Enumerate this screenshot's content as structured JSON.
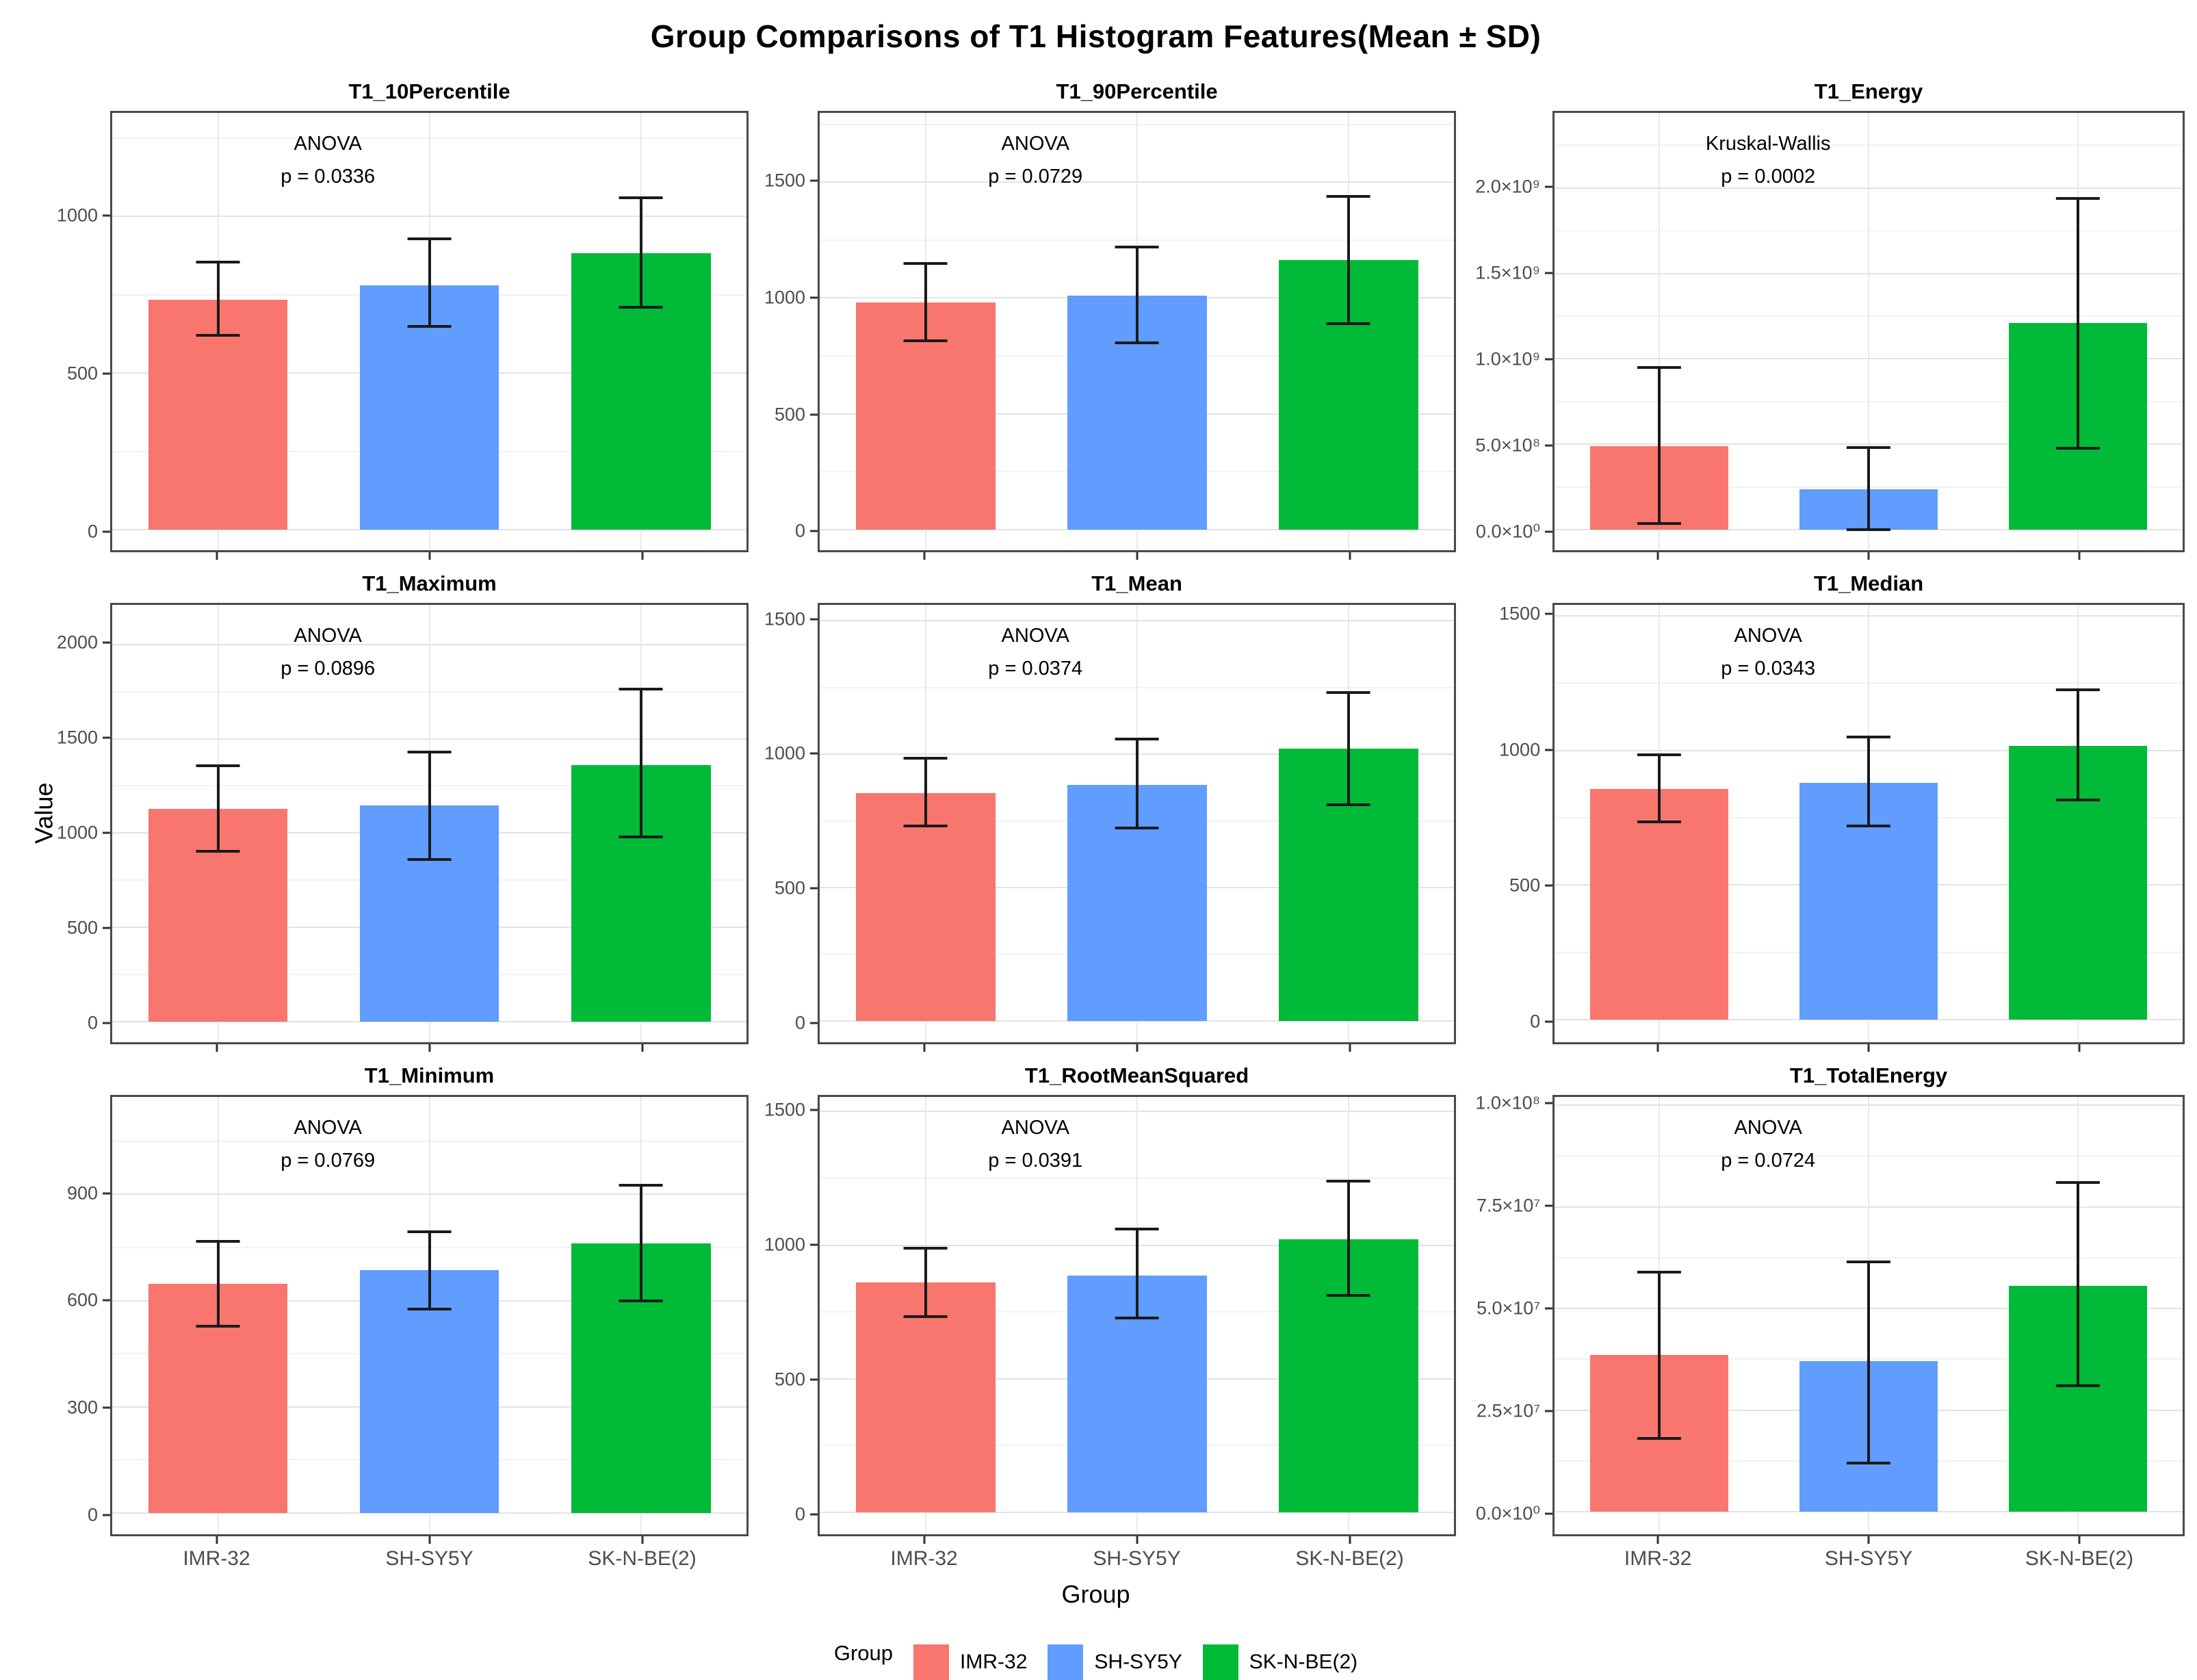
{
  "chart_data": {
    "type": "bar",
    "title": "Group Comparisons of T1 Histogram Features(Mean ± SD)",
    "ylabel": "Value",
    "xlabel": "Group",
    "grid": "on",
    "legend_position": "bottom",
    "legend": {
      "title": "Group",
      "entries": [
        {
          "label": "IMR-32",
          "color": "#F8766D"
        },
        {
          "label": "SH-SY5Y",
          "color": "#619CFF"
        },
        {
          "label": "SK-N-BE(2)",
          "color": "#00BA38"
        }
      ]
    },
    "categories": [
      "IMR-32",
      "SH-SY5Y",
      "SK-N-BE(2)"
    ],
    "error_bar_meaning": "Mean ± SD",
    "panels": [
      {
        "title": "T1_10Percentile",
        "test": "ANOVA",
        "p_label": "p = 0.0336",
        "ymin": -65,
        "ymax": 1330,
        "ticks": [
          {
            "value": 0,
            "label": "0"
          },
          {
            "value": 500,
            "label": "500"
          },
          {
            "value": 1000,
            "label": "1000"
          }
        ],
        "bars": [
          {
            "group": "IMR-32",
            "mean": 735,
            "lo": 620,
            "hi": 855
          },
          {
            "group": "SH-SY5Y",
            "mean": 780,
            "lo": 648,
            "hi": 928
          },
          {
            "group": "SK-N-BE(2)",
            "mean": 882,
            "lo": 710,
            "hi": 1060
          }
        ]
      },
      {
        "title": "T1_90Percentile",
        "test": "ANOVA",
        "p_label": "p = 0.0729",
        "ymin": -90,
        "ymax": 1800,
        "ticks": [
          {
            "value": 0,
            "label": "0"
          },
          {
            "value": 500,
            "label": "500"
          },
          {
            "value": 1000,
            "label": "1000"
          },
          {
            "value": 1500,
            "label": "1500"
          }
        ],
        "bars": [
          {
            "group": "IMR-32",
            "mean": 980,
            "lo": 816,
            "hi": 1148
          },
          {
            "group": "SH-SY5Y",
            "mean": 1010,
            "lo": 806,
            "hi": 1220
          },
          {
            "group": "SK-N-BE(2)",
            "mean": 1163,
            "lo": 890,
            "hi": 1440
          }
        ]
      },
      {
        "title": "T1_Energy",
        "test": "Kruskal-Wallis",
        "p_label": "p = 0.0002",
        "ymin": -120000000,
        "ymax": 2440000000,
        "ticks": [
          {
            "value": 0,
            "label": "0.0×10⁰"
          },
          {
            "value": 500000000,
            "label": "5.0×10⁸"
          },
          {
            "value": 1000000000,
            "label": "1.0×10⁹"
          },
          {
            "value": 1500000000,
            "label": "1.5×10⁹"
          },
          {
            "value": 2000000000,
            "label": "2.0×10⁹"
          }
        ],
        "bars": [
          {
            "group": "IMR-32",
            "mean": 490000000,
            "lo": 35000000,
            "hi": 950000000
          },
          {
            "group": "SH-SY5Y",
            "mean": 235000000,
            "lo": 0,
            "hi": 480000000
          },
          {
            "group": "SK-N-BE(2)",
            "mean": 1210000000,
            "lo": 475000000,
            "hi": 1940000000
          }
        ]
      },
      {
        "title": "T1_Maximum",
        "test": "ANOVA",
        "p_label": "p = 0.0896",
        "ymin": -110,
        "ymax": 2210,
        "ticks": [
          {
            "value": 0,
            "label": "0"
          },
          {
            "value": 500,
            "label": "500"
          },
          {
            "value": 1000,
            "label": "1000"
          },
          {
            "value": 1500,
            "label": "1500"
          },
          {
            "value": 2000,
            "label": "2000"
          }
        ],
        "bars": [
          {
            "group": "IMR-32",
            "mean": 1128,
            "lo": 903,
            "hi": 1356
          },
          {
            "group": "SH-SY5Y",
            "mean": 1145,
            "lo": 860,
            "hi": 1428
          },
          {
            "group": "SK-N-BE(2)",
            "mean": 1362,
            "lo": 978,
            "hi": 1762
          }
        ]
      },
      {
        "title": "T1_Mean",
        "test": "ANOVA",
        "p_label": "p = 0.0374",
        "ymin": -80,
        "ymax": 1560,
        "ticks": [
          {
            "value": 0,
            "label": "0"
          },
          {
            "value": 500,
            "label": "500"
          },
          {
            "value": 1000,
            "label": "1000"
          },
          {
            "value": 1500,
            "label": "1500"
          }
        ],
        "bars": [
          {
            "group": "IMR-32",
            "mean": 854,
            "lo": 730,
            "hi": 985
          },
          {
            "group": "SH-SY5Y",
            "mean": 884,
            "lo": 724,
            "hi": 1056
          },
          {
            "group": "SK-N-BE(2)",
            "mean": 1020,
            "lo": 810,
            "hi": 1232
          }
        ]
      },
      {
        "title": "T1_Median",
        "test": "ANOVA",
        "p_label": "p = 0.0343",
        "ymin": -83,
        "ymax": 1540,
        "ticks": [
          {
            "value": 0,
            "label": "0"
          },
          {
            "value": 500,
            "label": "500"
          },
          {
            "value": 1000,
            "label": "1000"
          },
          {
            "value": 1500,
            "label": "1500"
          }
        ],
        "bars": [
          {
            "group": "IMR-32",
            "mean": 858,
            "lo": 734,
            "hi": 983
          },
          {
            "group": "SH-SY5Y",
            "mean": 879,
            "lo": 719,
            "hi": 1050
          },
          {
            "group": "SK-N-BE(2)",
            "mean": 1017,
            "lo": 816,
            "hi": 1224
          }
        ]
      },
      {
        "title": "T1_Minimum",
        "test": "ANOVA",
        "p_label": "p = 0.0769",
        "ymin": -60,
        "ymax": 1175,
        "ticks": [
          {
            "value": 0,
            "label": "0"
          },
          {
            "value": 300,
            "label": "300"
          },
          {
            "value": 600,
            "label": "600"
          },
          {
            "value": 900,
            "label": "900"
          }
        ],
        "bars": [
          {
            "group": "IMR-32",
            "mean": 648,
            "lo": 528,
            "hi": 768
          },
          {
            "group": "SH-SY5Y",
            "mean": 686,
            "lo": 576,
            "hi": 795
          },
          {
            "group": "SK-N-BE(2)",
            "mean": 762,
            "lo": 600,
            "hi": 925
          }
        ]
      },
      {
        "title": "T1_RootMeanSquared",
        "test": "ANOVA",
        "p_label": "p = 0.0391",
        "ymin": -82,
        "ymax": 1555,
        "ticks": [
          {
            "value": 0,
            "label": "0"
          },
          {
            "value": 500,
            "label": "500"
          },
          {
            "value": 1000,
            "label": "1000"
          },
          {
            "value": 1500,
            "label": "1500"
          }
        ],
        "bars": [
          {
            "group": "IMR-32",
            "mean": 860,
            "lo": 732,
            "hi": 990
          },
          {
            "group": "SH-SY5Y",
            "mean": 887,
            "lo": 727,
            "hi": 1060
          },
          {
            "group": "SK-N-BE(2)",
            "mean": 1022,
            "lo": 812,
            "hi": 1240
          }
        ]
      },
      {
        "title": "T1_TotalEnergy",
        "test": "ANOVA",
        "p_label": "p = 0.0724",
        "ymin": -5500000,
        "ymax": 102000000,
        "ticks": [
          {
            "value": 0,
            "label": "0.0×10⁰"
          },
          {
            "value": 25000000,
            "label": "2.5×10⁷"
          },
          {
            "value": 50000000,
            "label": "5.0×10⁷"
          },
          {
            "value": 75000000,
            "label": "7.5×10⁷"
          },
          {
            "value": 100000000,
            "label": "1.0×10⁸"
          }
        ],
        "bars": [
          {
            "group": "IMR-32",
            "mean": 38500000,
            "lo": 18000000,
            "hi": 59000000
          },
          {
            "group": "SH-SY5Y",
            "mean": 37000000,
            "lo": 12000000,
            "hi": 61500000
          },
          {
            "group": "SK-N-BE(2)",
            "mean": 55500000,
            "lo": 31000000,
            "hi": 81000000
          }
        ]
      }
    ]
  }
}
